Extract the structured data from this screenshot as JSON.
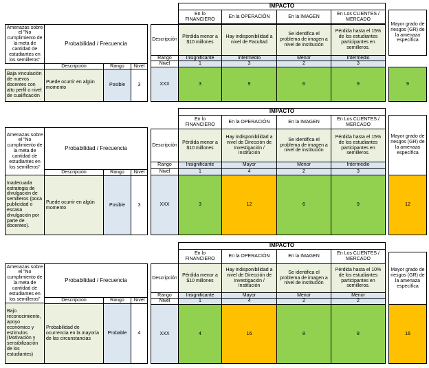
{
  "headers": {
    "impacto": "IMPACTO",
    "financiero": "En lo FINANCIERO",
    "operacion": "En la OPERACIÓN",
    "imagen": "En la IMAGEN",
    "clientes": "En Los CLIENTES / MERCADO",
    "mayor_grado": "Mayor grado de riesgos (GR) de la amenaza específica",
    "amenazas": "Amenazas sobre el \"No cumplimiento de la meta de cantidad de estudiantes en los semilleros\"",
    "probabilidad": "Probabilidad / Frecuencia",
    "descripcion": "Descripción",
    "rango": "Rango",
    "nivel": "Nivel"
  },
  "colors": {
    "green_light": "#ebf1de",
    "blue_light": "#dce6f1",
    "green": "#92d050",
    "orange": "#ffc000"
  },
  "blocks": [
    {
      "impact_desc": {
        "financiero": "Pérdida menor a $10 millones",
        "operacion": "Hay indisponibilidad a nivel de Facultad",
        "imagen": "Se identifica el problema de imagen a nivel de institución",
        "clientes": "Pérdida hasta el 15% de los estudiantes participantes en semilleros."
      },
      "rango": [
        "Insignificante",
        "Intermedio",
        "Menor",
        "Intermedio"
      ],
      "nivel": [
        "1",
        "3",
        "2",
        "3"
      ],
      "amenaza": "Baja vinculación de nuevos docentes con alto perfil o nivel de cualificación",
      "prob_desc": "Puede ocurrir en algún momento",
      "prob_rango": "Posible",
      "prob_nivel": "3",
      "xxx": "XXX",
      "scores": [
        "3",
        "9",
        "6",
        "9"
      ],
      "gr": "9"
    },
    {
      "impact_desc": {
        "financiero": "Pérdida menor a $10 millones",
        "operacion": "Hay indisponibilidad a nivel de Dirección de Investigación / Institución",
        "imagen": "Se identifica el problema de imagen a nivel de institución",
        "clientes": "Pérdida hasta el 15% de los estudiantes participantes en semilleros."
      },
      "rango": [
        "Insignificante",
        "Mayor",
        "Menor",
        "Intermedio"
      ],
      "nivel": [
        "1",
        "4",
        "2",
        "3"
      ],
      "amenaza": "Inadecuada estrategia de divulgación de semilleros (poca publicidad o escasa divulgación por parte de docentes).",
      "prob_desc": "Puede ocurrir en algún momento",
      "prob_rango": "Posible",
      "prob_nivel": "3",
      "xxx": "XXX",
      "scores": [
        "3",
        "12",
        "6",
        "9"
      ],
      "gr": "12"
    },
    {
      "impact_desc": {
        "financiero": "Pérdida menor a $10 millones",
        "operacion": "Hay indisponibilidad a nivel de Dirección de Investigación / Institución",
        "imagen": "Se identifica el problema de imagen a nivel de institución",
        "clientes": "Pérdida hasta el 10% de los estudiantes participantes en semilleros."
      },
      "rango": [
        "Insignificante",
        "Mayor",
        "Menor",
        "Menor"
      ],
      "nivel": [
        "1",
        "4",
        "2",
        "2"
      ],
      "amenaza": "Bajo reconocimiento, apoyo económico y estímulos (Motivación y sensibilización de los estudiantes)",
      "prob_desc": "Probabilidad de ocurrencia en la mayoría de las circunstancias",
      "prob_rango": "Probable",
      "prob_nivel": "4",
      "xxx": "XXX",
      "scores": [
        "4",
        "16",
        "8",
        "8"
      ],
      "gr": "16"
    }
  ]
}
